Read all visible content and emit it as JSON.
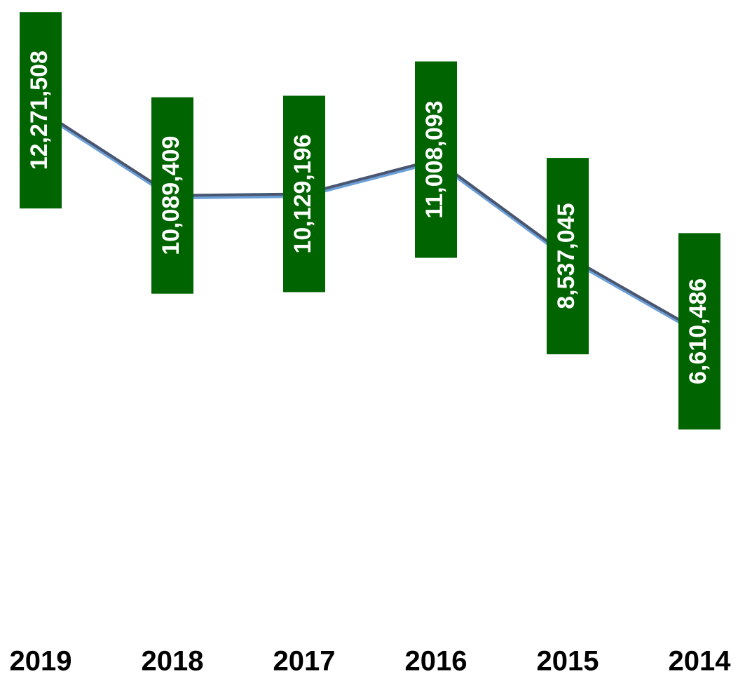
{
  "chart_data": {
    "type": "line",
    "categories": [
      "2019",
      "2018",
      "2017",
      "2016",
      "2015",
      "2014"
    ],
    "series": [
      {
        "color": "#4a5670",
        "values": [
          12271508,
          10089409,
          10129196,
          11008093,
          8537045,
          6610486
        ],
        "value_labels": [
          "12,271,508",
          "10,089,409",
          "10,129,196",
          "11,008,093",
          "8,537,045",
          "6,610,486"
        ]
      }
    ],
    "label_color": "#006400",
    "ylim": [
      -1000000,
      14000000
    ]
  }
}
